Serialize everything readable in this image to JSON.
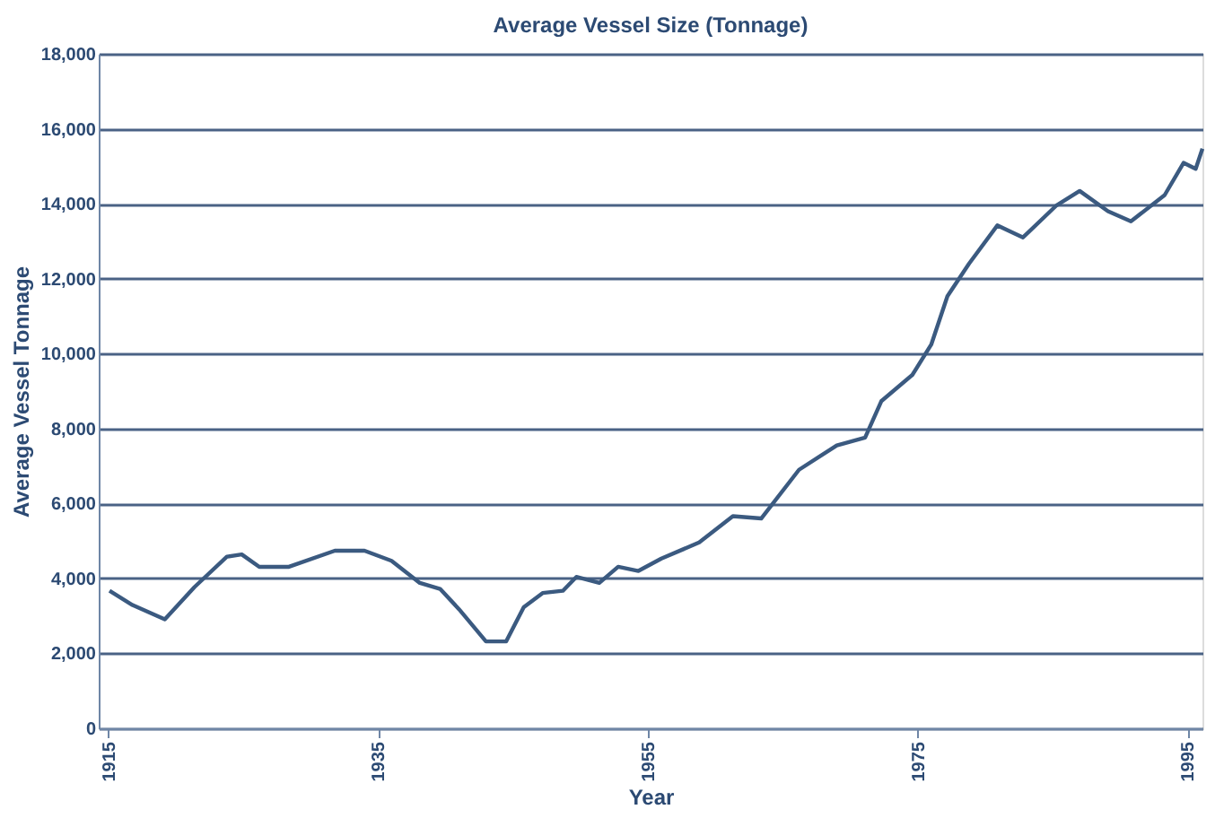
{
  "chart_data": {
    "type": "line",
    "title": "Average Vessel Size (Tonnage)",
    "xlabel": "Year",
    "ylabel": "Average Vessel Tonnage",
    "x": [
      1915.1,
      1916.8,
      1919.2,
      1921.4,
      1923.8,
      1924.9,
      1926.2,
      1928.4,
      1931.8,
      1934,
      1936,
      1938.1,
      1939.6,
      1941,
      1943,
      1944.5,
      1945.8,
      1947.2,
      1948.7,
      1949.7,
      1951.4,
      1952.8,
      1954.3,
      1956,
      1958.8,
      1961.3,
      1963.4,
      1966.2,
      1969,
      1971.1,
      1972.3,
      1974.6,
      1976,
      1977.2,
      1978.8,
      1980.9,
      1982.8,
      1985.3,
      1987,
      1989.1,
      1990.8,
      1993.3,
      1994.7,
      1995.6,
      1996.1
    ],
    "series": [
      {
        "color": "#3b5a80",
        "values": [
          3670,
          3290,
          2910,
          3770,
          4580,
          4640,
          4310,
          4310,
          4740,
          4740,
          4470,
          3880,
          3720,
          3180,
          2320,
          2320,
          3230,
          3610,
          3670,
          4040,
          3880,
          4310,
          4200,
          4530,
          4960,
          5660,
          5600,
          6900,
          7550,
          7760,
          8730,
          9430,
          10240,
          11530,
          12400,
          13420,
          13100,
          13960,
          14340,
          13800,
          13530,
          14230,
          15090,
          14930,
          15470
        ]
      }
    ],
    "xlim": [
      1914.3,
      1996.1
    ],
    "xticks": [
      1915,
      1935,
      1955,
      1975,
      1995
    ],
    "ylim": [
      0,
      18000
    ],
    "yticks": [
      0,
      {
        "value": 2000,
        "label": "2,000"
      },
      {
        "value": 4000,
        "label": "4,000"
      },
      {
        "value": 6000,
        "label": "6,000"
      },
      {
        "value": 8000,
        "label": "8,000"
      },
      {
        "value": 10000,
        "label": "10,000"
      },
      {
        "value": 12000,
        "label": "12,000"
      },
      {
        "value": 14000,
        "label": "14,000"
      },
      {
        "value": 16000,
        "label": "16,000"
      },
      {
        "value": 18000,
        "label": "18,000"
      }
    ],
    "grid": "y",
    "marker": "none",
    "line_style": "solid"
  }
}
